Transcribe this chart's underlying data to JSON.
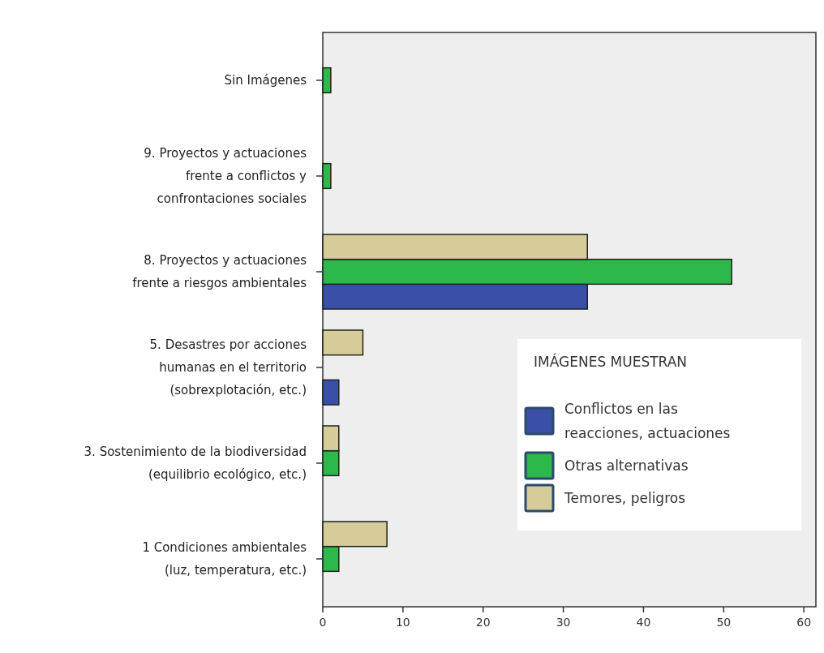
{
  "chart_data": {
    "type": "bar",
    "orientation": "horizontal",
    "categories": [
      "Sin  Imágenes",
      "9. Proyectos y actuaciones\nfrente a conflictos y\nconfrontaciones sociales",
      "8. Proyectos y  actuaciones\nfrente a riesgos ambientales",
      "5. Desastres por acciones\nhumanas en el territorio\n(sobrexplotación, etc.)",
      "3. Sostenimiento de la biodiversidad\n(equilibrio ecológico, etc.)",
      "1 Condiciones ambientales\n(luz, temperatura, etc.)"
    ],
    "series": [
      {
        "name": "Conflictos  en las\nreacciones, actuaciones",
        "color": "#3a50a8",
        "values": [
          null,
          null,
          33,
          2,
          null,
          null
        ]
      },
      {
        "name": "Otras alternativas",
        "color": "#2cb84a",
        "values": [
          1,
          1,
          51,
          null,
          2,
          2
        ]
      },
      {
        "name": "Temores, peligros",
        "color": "#d5cc9a",
        "values": [
          null,
          null,
          33,
          5,
          2,
          8
        ]
      }
    ],
    "xlim": [
      0,
      61.5
    ],
    "xticks": [
      0,
      10,
      20,
      30,
      40,
      50,
      60
    ],
    "legend": "right",
    "legend_title": "IMÁGENES MUESTRAN"
  }
}
